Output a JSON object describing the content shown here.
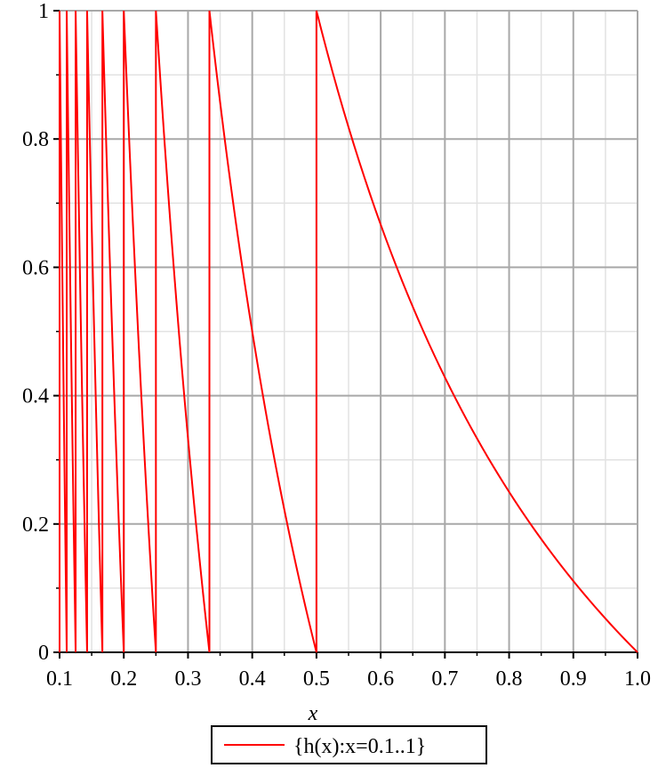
{
  "chart_data": {
    "type": "line",
    "xlabel": "x",
    "ylabel": "",
    "xlim": [
      0.1,
      1.0
    ],
    "ylim": [
      0,
      1
    ],
    "x_ticks": [
      "0.1",
      "0.2",
      "0.3",
      "0.4",
      "0.5",
      "0.6",
      "0.7",
      "0.8",
      "0.9",
      "1.0"
    ],
    "y_ticks": [
      "0",
      "0.2",
      "0.4",
      "0.6",
      "0.8",
      "1"
    ],
    "grid": true,
    "legend_position": "bottom",
    "series": [
      {
        "name": "{h(x):x=0.1..1}",
        "color": "#ff0000",
        "function": "h(x) = 1/x - floor(1/x)",
        "x_domain": [
          0.1,
          1.0
        ],
        "sample_points": [
          {
            "x": 0.1,
            "y": 0
          },
          {
            "x": 0.111,
            "y": 1
          },
          {
            "x": 0.125,
            "y": 1
          },
          {
            "x": 0.1429,
            "y": 1
          },
          {
            "x": 0.1667,
            "y": 1
          },
          {
            "x": 0.2,
            "y": 1
          },
          {
            "x": 0.25,
            "y": 1
          },
          {
            "x": 0.3333,
            "y": 1
          },
          {
            "x": 0.3333,
            "y": 0
          },
          {
            "x": 0.4,
            "y": 0.5
          },
          {
            "x": 0.5,
            "y": 0
          },
          {
            "x": 0.5,
            "y": 1
          },
          {
            "x": 0.6,
            "y": 0.667
          },
          {
            "x": 0.7,
            "y": 0.429
          },
          {
            "x": 0.8,
            "y": 0.25
          },
          {
            "x": 0.9,
            "y": 0.111
          },
          {
            "x": 1.0,
            "y": 0
          }
        ]
      }
    ]
  },
  "legend": {
    "label": "{h(x):x=0.1..1}"
  }
}
